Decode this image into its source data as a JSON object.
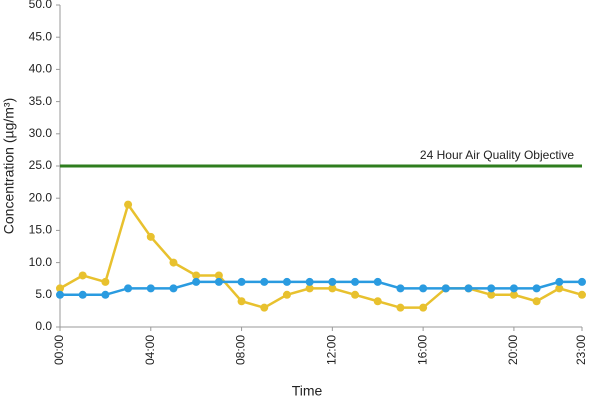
{
  "chart_data": {
    "type": "line",
    "x_label": "Time",
    "y_label": "Concentration (µg/m³)",
    "categories": [
      "00:00",
      null,
      null,
      null,
      "04:00",
      null,
      null,
      null,
      "08:00",
      null,
      null,
      null,
      "12:00",
      null,
      null,
      null,
      "16:00",
      null,
      null,
      null,
      "20:00",
      null,
      null,
      "23:00"
    ],
    "series": [
      {
        "color": "#e8c12e",
        "values": [
          6,
          8,
          7,
          19,
          14,
          10,
          8,
          8,
          4,
          3,
          5,
          6,
          6,
          5,
          4,
          3,
          3,
          6,
          6,
          5,
          5,
          4,
          6,
          5
        ]
      },
      {
        "color": "#2a9be0",
        "values": [
          5,
          5,
          5,
          6,
          6,
          6,
          7,
          7,
          7,
          7,
          7,
          7,
          7,
          7,
          7,
          6,
          6,
          6,
          6,
          6,
          6,
          6,
          7,
          7
        ]
      }
    ],
    "reference_line": {
      "value": 25,
      "label": "24 Hour Air Quality Objective",
      "color": "#2e7d1e"
    },
    "ylim": [
      0,
      50
    ],
    "yticks": [
      {
        "value": 0,
        "label": "0.0"
      },
      {
        "value": 5,
        "label": "5.0"
      },
      {
        "value": 10,
        "label": "10.0"
      },
      {
        "value": 15,
        "label": "15.0"
      },
      {
        "value": 20,
        "label": "20.0"
      },
      {
        "value": 25,
        "label": "25.0"
      },
      {
        "value": 30,
        "label": "30.0"
      },
      {
        "value": 35,
        "label": "35.0"
      },
      {
        "value": 40,
        "label": "40.0"
      },
      {
        "value": 45,
        "label": "45.0"
      },
      {
        "value": 50,
        "label": "50.0"
      }
    ],
    "grid": false
  }
}
